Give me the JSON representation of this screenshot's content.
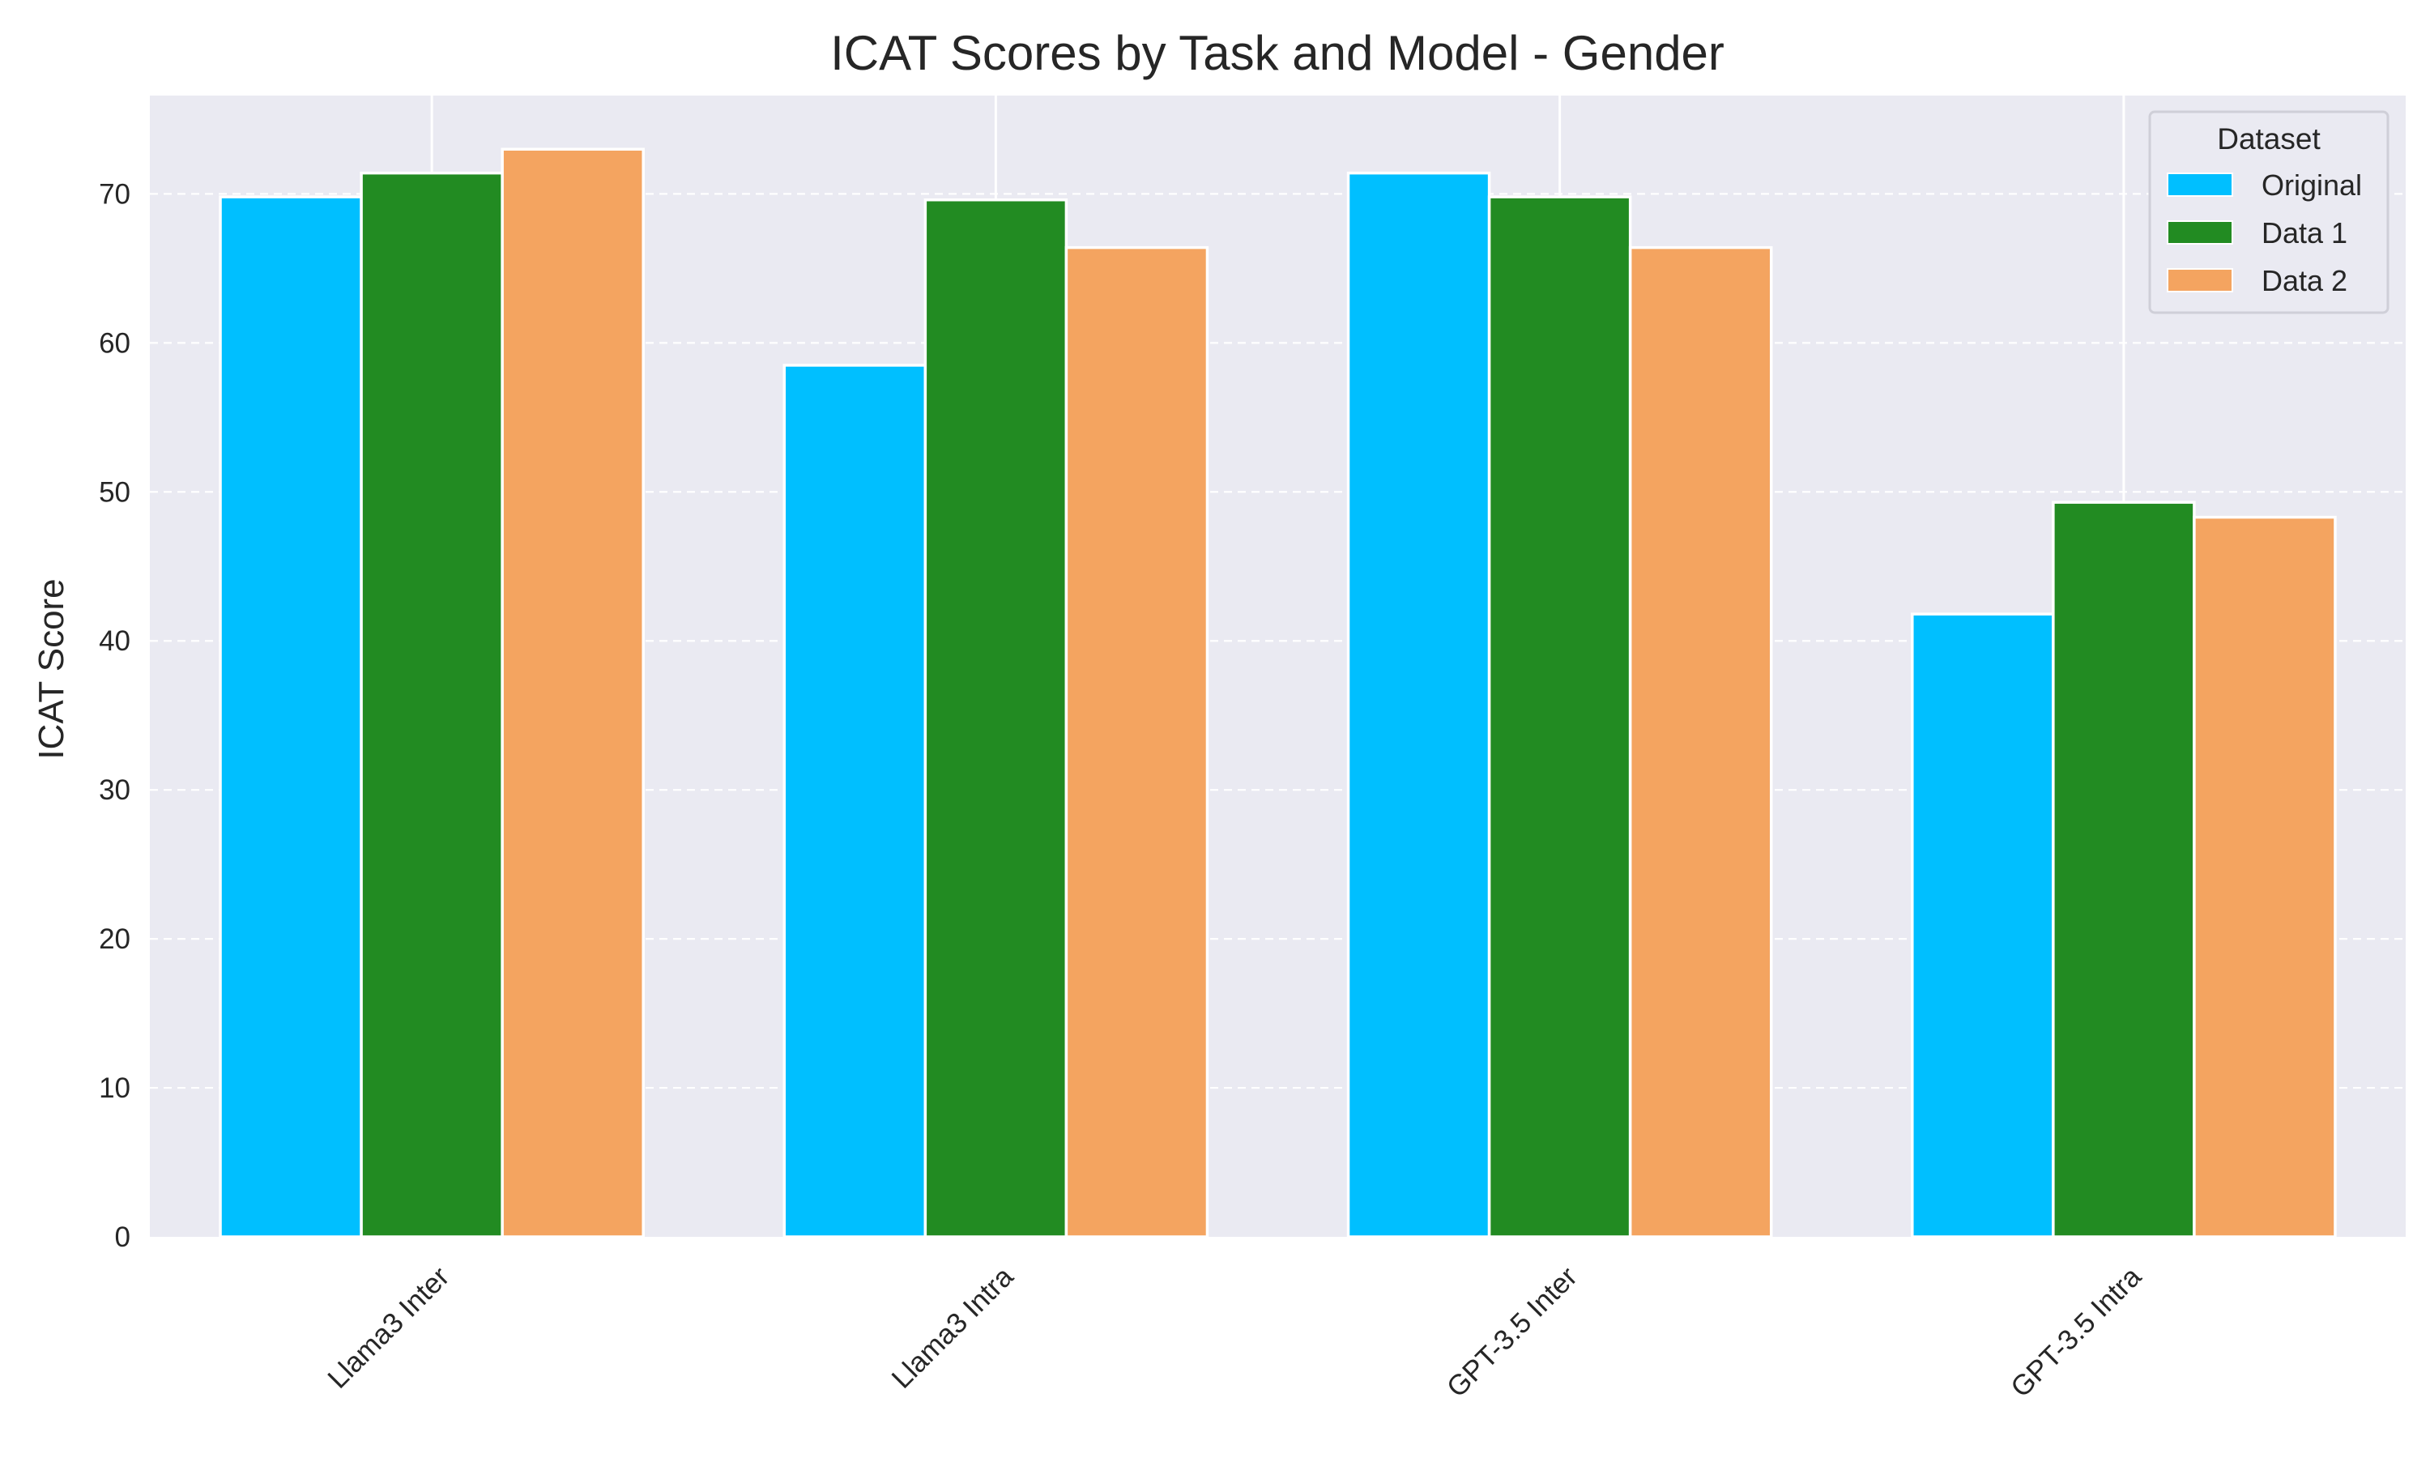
{
  "chart_data": {
    "type": "bar",
    "title": "ICAT Scores by Task and Model - Gender",
    "xlabel": "",
    "ylabel": "ICAT Score",
    "categories": [
      "Llama3 Inter",
      "Llama3 Intra",
      "GPT-3.5 Inter",
      "GPT-3.5 Intra"
    ],
    "series": [
      {
        "name": "Original",
        "color": "#00BFFF",
        "values": [
          69.8,
          58.5,
          71.4,
          41.8
        ]
      },
      {
        "name": "Data 1",
        "color": "#228B22",
        "values": [
          71.4,
          69.6,
          69.8,
          49.3
        ]
      },
      {
        "name": "Data 2",
        "color": "#F4A460",
        "values": [
          73.0,
          66.4,
          66.4,
          48.3
        ]
      }
    ],
    "ylim": [
      0,
      76.6
    ],
    "yticks": [
      0,
      10,
      20,
      30,
      40,
      50,
      60,
      70
    ],
    "grid": true,
    "legend": {
      "title": "Dataset",
      "position": "top-right"
    },
    "background_color": "#EAEAF2"
  }
}
